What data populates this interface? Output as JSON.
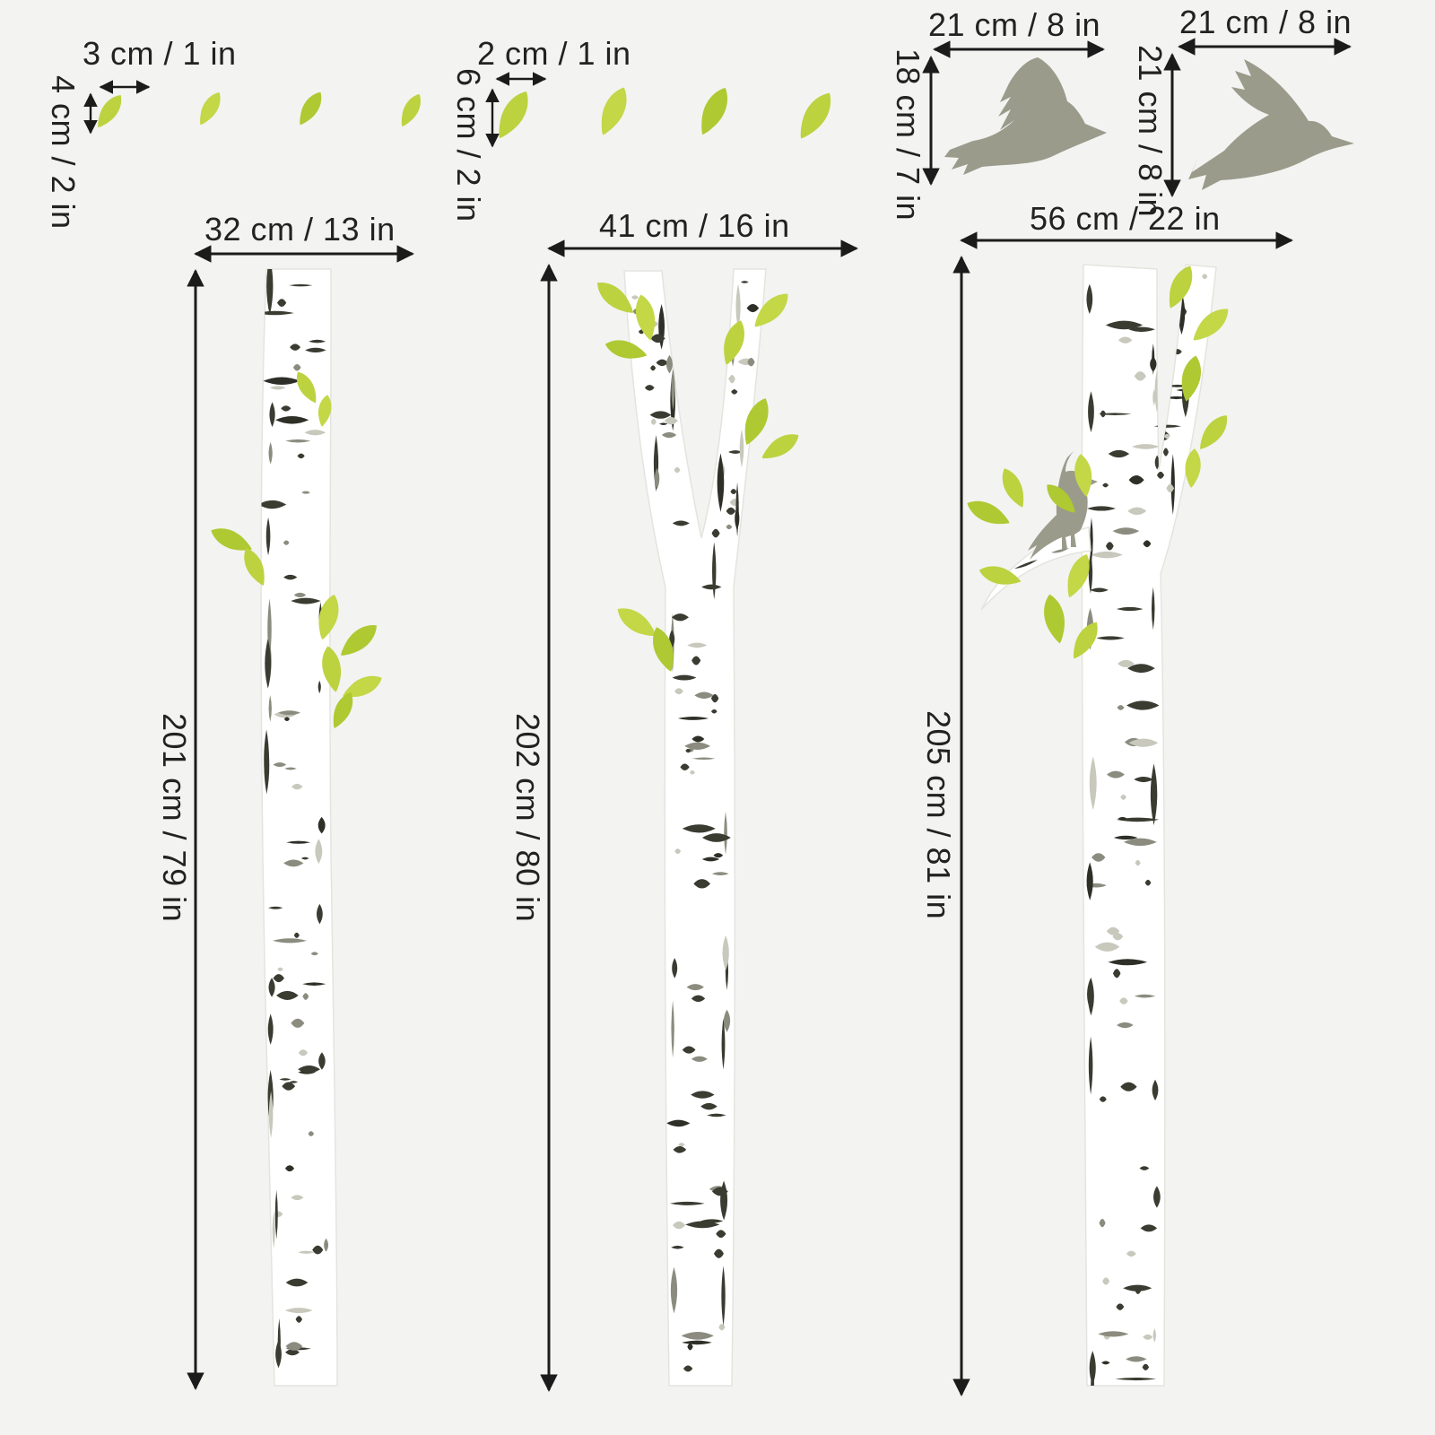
{
  "background": "#f3f3f1",
  "colors": {
    "leaf_green": "#bdd23f",
    "bird_gray": "#9a9b8b",
    "trunk_white": "#ffffff",
    "bark_dark": "#3a3b31",
    "bark_light": "#c8c8bd",
    "dimension_lines": "#1b1b1b",
    "label_text": "#222222"
  },
  "leaf_groups": [
    {
      "width_label": "3 cm / 1 in",
      "height_label": "4 cm / 2 in",
      "count": 4
    },
    {
      "width_label": "2 cm / 1 in",
      "height_label": "6 cm / 2 in",
      "count": 4
    }
  ],
  "birds": [
    {
      "width_label": "21 cm / 8 in",
      "height_label": "18 cm / 7 in"
    },
    {
      "width_label": "21 cm / 8 in",
      "height_label": "21 cm / 8 in"
    }
  ],
  "trees": [
    {
      "width_label": "32 cm / 13 in",
      "height_label": "201 cm / 79 in"
    },
    {
      "width_label": "41 cm / 16 in",
      "height_label": "202 cm / 80 in"
    },
    {
      "width_label": "56 cm / 22 in",
      "height_label": "205 cm / 81 in"
    }
  ]
}
